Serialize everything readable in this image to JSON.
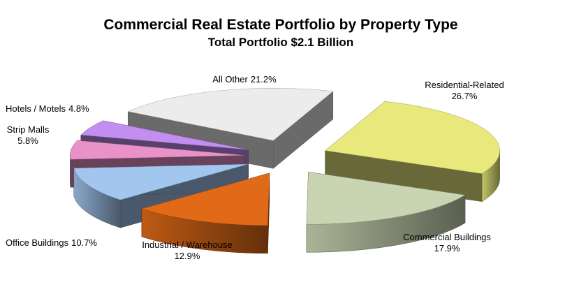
{
  "chart_data": {
    "type": "pie3d",
    "title": "Commercial Real Estate Portfolio by Property Type",
    "subtitle": "Total Portfolio $2.1 Billion",
    "categories": [
      "Residential-Related",
      "Commercial Buildings",
      "Industrial / Warehouse",
      "Office Buildings",
      "Strip Malls",
      "Hotels / Motels",
      "All Other"
    ],
    "values": [
      26.7,
      17.9,
      12.9,
      10.7,
      5.8,
      4.8,
      21.2
    ],
    "value_labels": [
      "26.7%",
      "17.9%",
      "12.9%",
      "10.7%",
      "5.8%",
      "4.8%",
      "21.2%"
    ],
    "colors": [
      "#e8e87c",
      "#c9d4b2",
      "#e06a18",
      "#a3c6ee",
      "#e892c8",
      "#c28ef0",
      "#ececec"
    ]
  }
}
